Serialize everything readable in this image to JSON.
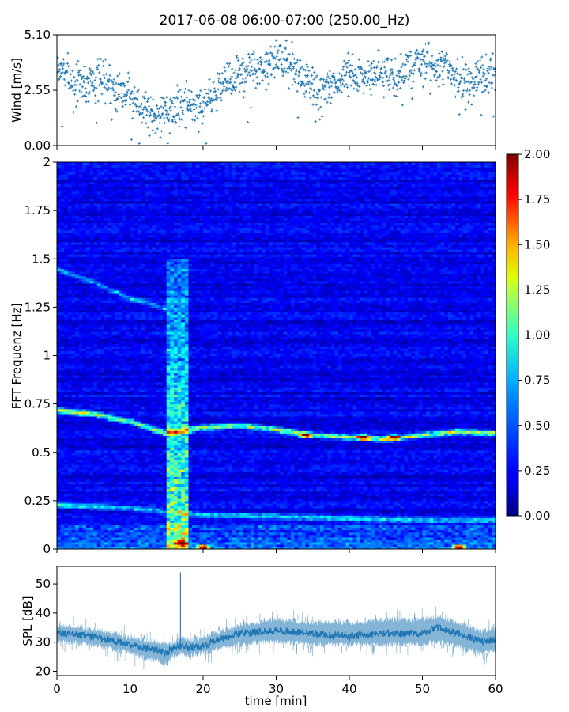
{
  "figure": {
    "title": "2017-06-08 06:00-07:00 (250.00_Hz)"
  },
  "chart_data": [
    {
      "type": "scatter",
      "panel": "wind",
      "ylabel": "Wind [m/s]",
      "xlabel": "",
      "xlim": [
        0,
        60
      ],
      "ylim": [
        0,
        5.1
      ],
      "yticks": [
        "0.00",
        "2.55",
        "5.10"
      ],
      "xticks": [
        0,
        10,
        20,
        30,
        40,
        50,
        60
      ],
      "marker": "+",
      "color": "#1f77b4",
      "trend": {
        "x": [
          0,
          2,
          4,
          6,
          8,
          10,
          12,
          14,
          16,
          18,
          20,
          22,
          24,
          26,
          28,
          30,
          32,
          34,
          36,
          38,
          40,
          42,
          44,
          46,
          48,
          50,
          52,
          54,
          56,
          58,
          60
        ],
        "y": [
          3.6,
          3.1,
          2.8,
          3.2,
          2.7,
          2.2,
          1.8,
          1.4,
          1.6,
          2.0,
          1.8,
          2.6,
          3.2,
          3.3,
          3.7,
          4.0,
          3.8,
          3.0,
          2.4,
          2.8,
          3.3,
          3.2,
          3.4,
          3.0,
          3.6,
          3.9,
          3.5,
          3.6,
          2.6,
          3.2,
          3.1
        ]
      },
      "spread": 0.45,
      "n_points": 1200
    },
    {
      "type": "heatmap",
      "panel": "spectrogram",
      "ylabel": "FFT Frequenz [Hz]",
      "xlabel": "",
      "xlim": [
        0,
        60
      ],
      "ylim": [
        0,
        2
      ],
      "yticks": [
        "0",
        "0.25",
        "0.5",
        "0.75",
        "1",
        "1.25",
        "1.5",
        "1.75",
        "2"
      ],
      "colormap": "jet",
      "colorbar": {
        "vmin": 0,
        "vmax": 2,
        "ticks": [
          "0.00",
          "0.25",
          "0.50",
          "0.75",
          "1.00",
          "1.25",
          "1.50",
          "1.75",
          "2.00"
        ]
      },
      "background_level": 0.22,
      "lines": [
        {
          "x": [
            0,
            5,
            10,
            15,
            20,
            25,
            30,
            35,
            40,
            45,
            50,
            55,
            60
          ],
          "y": [
            0.72,
            0.7,
            0.66,
            0.6,
            0.63,
            0.64,
            0.62,
            0.59,
            0.58,
            0.57,
            0.59,
            0.61,
            0.6
          ],
          "level": 1.0
        },
        {
          "x": [
            0,
            10,
            20,
            30,
            40,
            50,
            60
          ],
          "y": [
            0.23,
            0.21,
            0.18,
            0.17,
            0.16,
            0.15,
            0.15
          ],
          "level": 0.55
        },
        {
          "x": [
            0,
            5,
            10,
            15
          ],
          "y": [
            1.45,
            1.38,
            1.3,
            1.24
          ],
          "level": 0.45
        }
      ],
      "broadband_burst": {
        "x": [
          14.8,
          17.8
        ],
        "level": 0.7
      },
      "hotspots": [
        {
          "x": 17,
          "y": 0.03,
          "level": 1.6
        },
        {
          "x": 20,
          "y": 0.01,
          "level": 1.9
        },
        {
          "x": 34,
          "y": 0.59,
          "level": 1.8
        },
        {
          "x": 42,
          "y": 0.58,
          "level": 1.8
        },
        {
          "x": 46,
          "y": 0.58,
          "level": 1.7
        },
        {
          "x": 55,
          "y": 0.01,
          "level": 1.9
        }
      ]
    },
    {
      "type": "area",
      "panel": "spl",
      "ylabel": "SPL [dB]",
      "xlabel": "time [min]",
      "xlim": [
        0,
        60
      ],
      "ylim": [
        18.5,
        56
      ],
      "yticks": [
        20,
        30,
        40,
        50
      ],
      "xticks": [
        0,
        10,
        20,
        30,
        40,
        50,
        60
      ],
      "color": "#1f77b4",
      "x": [
        0,
        5,
        10,
        14,
        15,
        16,
        17,
        18,
        20,
        25,
        30,
        35,
        40,
        45,
        50,
        52,
        55,
        58,
        60
      ],
      "y_mid": [
        33,
        32,
        29,
        27,
        26,
        28,
        29,
        28,
        29,
        33,
        34,
        33,
        32,
        33,
        33,
        35,
        33,
        30,
        31
      ],
      "y_low": [
        29,
        28,
        25,
        22,
        21,
        24,
        25,
        24,
        25,
        28,
        29,
        28,
        28,
        28,
        28,
        29,
        27,
        25,
        26
      ],
      "y_high": [
        37,
        36,
        33,
        31,
        31,
        31,
        33,
        32,
        33,
        37,
        39,
        38,
        38,
        39,
        39,
        40,
        38,
        35,
        36
      ],
      "spike": {
        "x": 16.9,
        "y": 54
      }
    }
  ]
}
